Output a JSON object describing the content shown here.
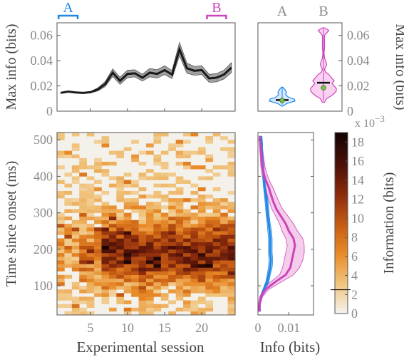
{
  "chart_data": [
    {
      "id": "max-info-line",
      "type": "line",
      "ylabel": "Max info (bits)",
      "ylim": [
        0,
        0.07
      ],
      "yticks": [
        "0",
        "0.02",
        "0.04",
        "0.06"
      ],
      "ytick_values": [
        0,
        0.02,
        0.04,
        0.06
      ],
      "xlim": [
        0.5,
        24.5
      ],
      "bracket_labels": [
        "A",
        "B"
      ],
      "bracket_colors": [
        "#1e88e5",
        "#cc44bb"
      ],
      "brackets": [
        [
          1,
          3
        ],
        [
          21,
          23
        ]
      ],
      "x": [
        1,
        2,
        3,
        4,
        5,
        6,
        7,
        8,
        9,
        10,
        11,
        12,
        13,
        14,
        15,
        16,
        17,
        18,
        19,
        20,
        21,
        22,
        23,
        24
      ],
      "mean": [
        0.0145,
        0.0155,
        0.0148,
        0.0145,
        0.015,
        0.0172,
        0.0215,
        0.0305,
        0.024,
        0.0295,
        0.03,
        0.0265,
        0.0305,
        0.0295,
        0.0325,
        0.029,
        0.049,
        0.034,
        0.032,
        0.0325,
        0.026,
        0.0265,
        0.029,
        0.0345
      ],
      "lower": [
        0.014,
        0.015,
        0.0143,
        0.014,
        0.0144,
        0.016,
        0.0195,
        0.0275,
        0.0212,
        0.0265,
        0.0272,
        0.0238,
        0.0272,
        0.0262,
        0.029,
        0.0258,
        0.044,
        0.03,
        0.0285,
        0.029,
        0.0228,
        0.0232,
        0.0255,
        0.0305
      ],
      "upper": [
        0.015,
        0.016,
        0.0153,
        0.015,
        0.0156,
        0.0184,
        0.0235,
        0.0335,
        0.0268,
        0.0325,
        0.0328,
        0.0292,
        0.0338,
        0.0328,
        0.036,
        0.0322,
        0.0545,
        0.038,
        0.0355,
        0.036,
        0.0292,
        0.0298,
        0.0325,
        0.0385
      ],
      "line_color": "#1a1a1a",
      "band_color": "#888888"
    },
    {
      "id": "max-info-violin",
      "type": "violin",
      "ylabel": "Max info (bits)",
      "ylim": [
        0,
        0.07
      ],
      "yticks": [
        "0",
        "0.02",
        "0.04",
        "0.06"
      ],
      "ytick_values": [
        0,
        0.02,
        0.04,
        0.06
      ],
      "categories": [
        "A",
        "B"
      ],
      "colors": [
        "#1e88e5",
        "#cc44bb"
      ],
      "fills": [
        "#d6e8ff",
        "#f8d2f0"
      ],
      "medians": [
        0.0085,
        0.0185
      ],
      "means": [
        0.0088,
        0.0225
      ],
      "profiles": [
        [
          [
            0.004,
            1
          ],
          [
            0.006,
            6
          ],
          [
            0.008,
            18
          ],
          [
            0.0095,
            17
          ],
          [
            0.011,
            9
          ],
          [
            0.013,
            5
          ],
          [
            0.015,
            6
          ],
          [
            0.017,
            4
          ],
          [
            0.019,
            1
          ]
        ],
        [
          [
            0.007,
            1
          ],
          [
            0.01,
            3
          ],
          [
            0.012,
            7
          ],
          [
            0.014,
            10
          ],
          [
            0.016,
            12
          ],
          [
            0.018,
            12
          ],
          [
            0.02,
            10
          ],
          [
            0.022,
            8
          ],
          [
            0.024,
            10
          ],
          [
            0.026,
            8
          ],
          [
            0.029,
            5
          ],
          [
            0.031,
            2
          ],
          [
            0.033,
            1
          ],
          [
            0.037,
            3
          ],
          [
            0.04,
            2
          ],
          [
            0.042,
            1
          ],
          [
            0.046,
            0.5
          ],
          [
            0.05,
            1
          ],
          [
            0.055,
            1
          ],
          [
            0.06,
            1
          ],
          [
            0.064,
            5
          ],
          [
            0.066,
            1
          ]
        ]
      ]
    },
    {
      "id": "info-heatmap",
      "type": "heatmap",
      "xlabel": "Experimental session",
      "ylabel": "Time since onset (ms)",
      "xlim": [
        0.5,
        24.5
      ],
      "ylim": [
        20,
        520
      ],
      "xticks": [
        "5",
        "10",
        "15",
        "20"
      ],
      "xtick_values": [
        5,
        10,
        15,
        20
      ],
      "yticks": [
        "100",
        "200",
        "300",
        "400",
        "500"
      ],
      "ytick_values": [
        100,
        200,
        300,
        400,
        500
      ],
      "sessions": 24,
      "time_bins_ms": [
        20,
        520,
        10
      ],
      "colormap": [
        "#f4f1ea",
        "#f0c27a",
        "#e88a28",
        "#c45a12",
        "#8a2a0c",
        "#4a1008",
        "#160404"
      ],
      "colorbar": {
        "label": "Information (bits)",
        "multiplier": "x 10",
        "exponent": "−3",
        "ticks": [
          "0",
          "2",
          "4",
          "6",
          "8",
          "10",
          "12",
          "14",
          "16",
          "18"
        ],
        "tick_values": [
          0,
          2,
          4,
          6,
          8,
          10,
          12,
          14,
          16,
          18
        ],
        "range": [
          0,
          19
        ],
        "marker_value": 2.5
      }
    },
    {
      "id": "info-time-profile",
      "type": "line",
      "xlabel": "Info (bits)",
      "xlim": [
        0,
        0.018
      ],
      "xticks": [
        "0",
        "0.01"
      ],
      "xtick_values": [
        0,
        0.01
      ],
      "ylim": [
        20,
        520
      ],
      "series_colors": [
        "#1e88e5",
        "#cc44bb"
      ],
      "band_color": "#f2c4e8",
      "time": [
        30,
        50,
        70,
        90,
        110,
        130,
        150,
        170,
        190,
        210,
        230,
        250,
        270,
        290,
        310,
        330,
        350,
        370,
        390,
        410,
        430,
        450,
        470,
        490,
        510
      ],
      "series": [
        {
          "values": [
            0.0005,
            0.0005,
            0.001,
            0.002,
            0.003,
            0.0035,
            0.004,
            0.0042,
            0.004,
            0.004,
            0.004,
            0.0038,
            0.0035,
            0.0032,
            0.003,
            0.0028,
            0.0025,
            0.0022,
            0.002,
            0.0018,
            0.0016,
            0.0014,
            0.0012,
            0.0012,
            0.001
          ],
          "lower": [
            0.0002,
            0.0003,
            0.0007,
            0.0016,
            0.0025,
            0.003,
            0.0034,
            0.0036,
            0.0034,
            0.0034,
            0.0034,
            0.0032,
            0.003,
            0.0027,
            0.0025,
            0.0023,
            0.0021,
            0.0018,
            0.0016,
            0.0014,
            0.0012,
            0.001,
            0.0009,
            0.0009,
            0.0007
          ],
          "upper": [
            0.0008,
            0.0008,
            0.0013,
            0.0024,
            0.0035,
            0.004,
            0.0046,
            0.0048,
            0.0046,
            0.0046,
            0.0046,
            0.0044,
            0.004,
            0.0037,
            0.0035,
            0.0033,
            0.0029,
            0.0026,
            0.0024,
            0.0022,
            0.002,
            0.0018,
            0.0015,
            0.0015,
            0.0013
          ]
        },
        {
          "values": [
            0.0005,
            0.0005,
            0.001,
            0.0025,
            0.0055,
            0.009,
            0.0105,
            0.011,
            0.0115,
            0.012,
            0.0115,
            0.01,
            0.009,
            0.0075,
            0.006,
            0.005,
            0.0042,
            0.0035,
            0.0025,
            0.0018,
            0.0014,
            0.0012,
            0.001,
            0.0008,
            0.0006
          ],
          "lower": [
            0.0002,
            0.0002,
            0.0006,
            0.0018,
            0.004,
            0.007,
            0.008,
            0.0085,
            0.009,
            0.0095,
            0.009,
            0.0078,
            0.007,
            0.0058,
            0.0045,
            0.0037,
            0.003,
            0.0025,
            0.0017,
            0.0012,
            0.0009,
            0.0008,
            0.0006,
            0.0005,
            0.0004
          ],
          "upper": [
            0.0008,
            0.0008,
            0.0015,
            0.0035,
            0.0075,
            0.0115,
            0.0135,
            0.0145,
            0.015,
            0.015,
            0.0145,
            0.0128,
            0.0115,
            0.0098,
            0.008,
            0.0068,
            0.0058,
            0.0048,
            0.0036,
            0.0028,
            0.0022,
            0.0019,
            0.0016,
            0.0013,
            0.001
          ]
        }
      ]
    }
  ]
}
